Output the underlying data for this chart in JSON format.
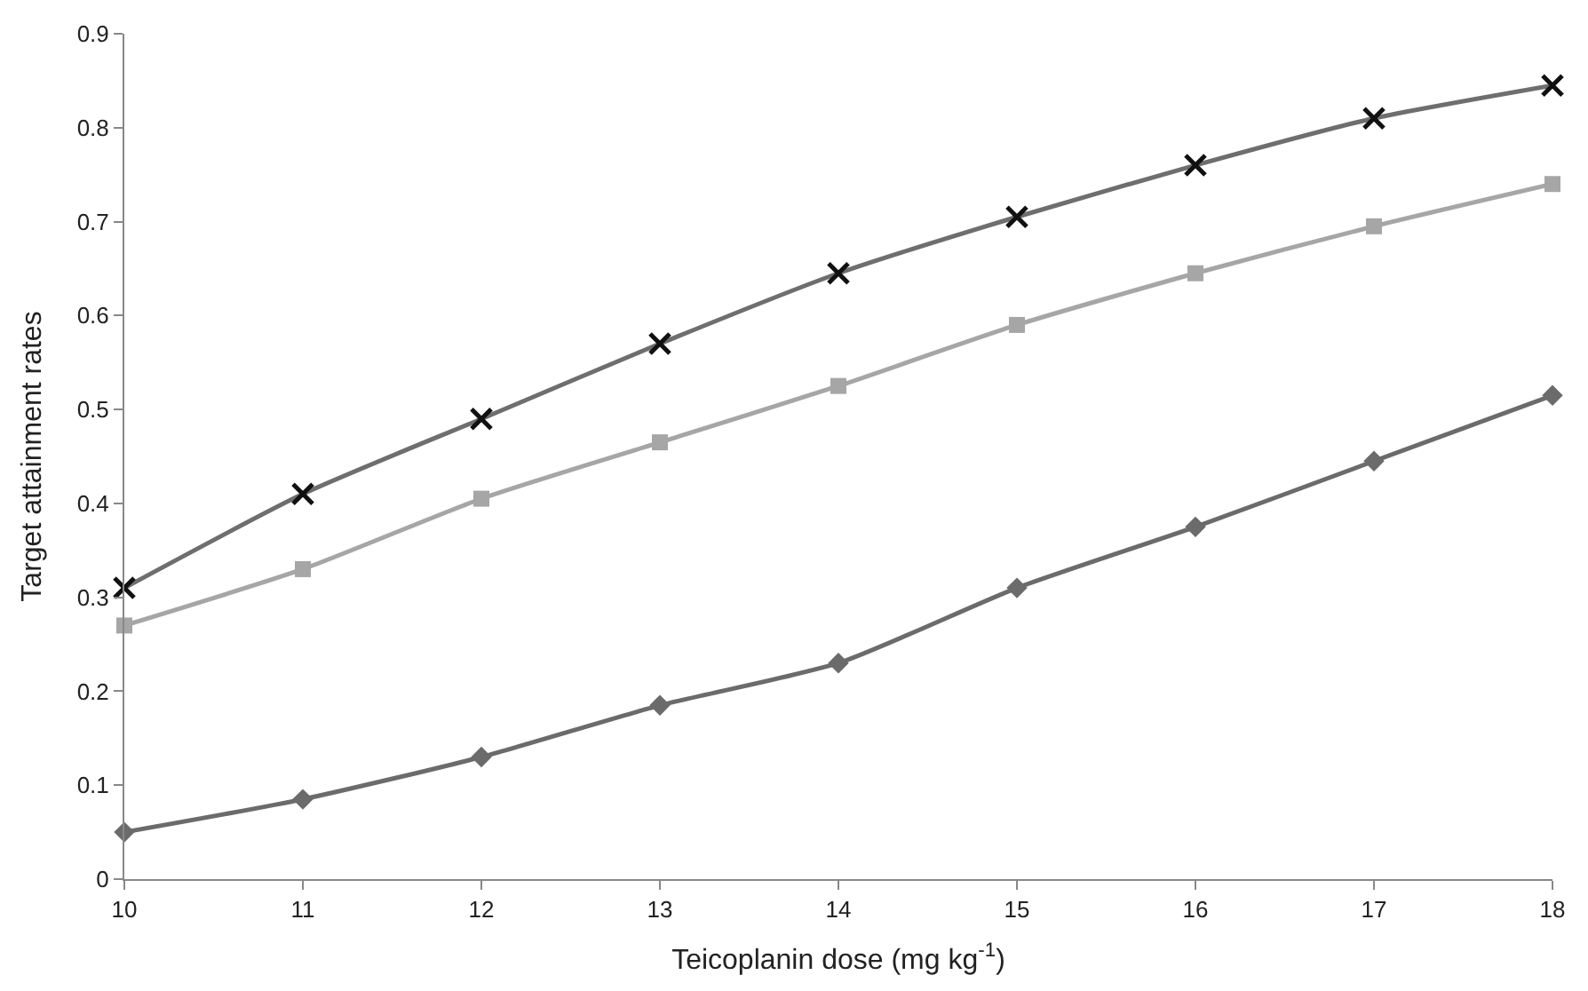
{
  "chart_data": {
    "type": "line",
    "xlabel": "Teicoplanin dose (mg kg$^{-1}$)",
    "ylabel": "Target attainment rates",
    "x": [
      10,
      11,
      12,
      13,
      14,
      15,
      16,
      17,
      18
    ],
    "series": [
      {
        "color": "#6e6e6e",
        "marker": "cross",
        "values": [
          0.31,
          0.41,
          0.49,
          0.57,
          0.645,
          0.705,
          0.76,
          0.81,
          0.845
        ]
      },
      {
        "color": "#a6a6a6",
        "marker": "square",
        "values": [
          0.27,
          0.33,
          0.405,
          0.465,
          0.525,
          0.59,
          0.645,
          0.695,
          0.74
        ]
      },
      {
        "color": "#6b6b6b",
        "marker": "diamond",
        "values": [
          0.05,
          0.085,
          0.13,
          0.185,
          0.23,
          0.31,
          0.375,
          0.445,
          0.515
        ]
      }
    ],
    "xlim": [
      10,
      18
    ],
    "xticks": [
      10,
      11,
      12,
      13,
      14,
      15,
      16,
      17,
      18
    ],
    "ylim": [
      0,
      0.9
    ],
    "yticks": [
      {
        "value": 0,
        "label": "0"
      },
      0.1,
      0.2,
      0.3,
      0.4,
      0.5,
      0.6,
      0.7,
      0.8,
      0.9
    ],
    "line_style": "solid"
  }
}
